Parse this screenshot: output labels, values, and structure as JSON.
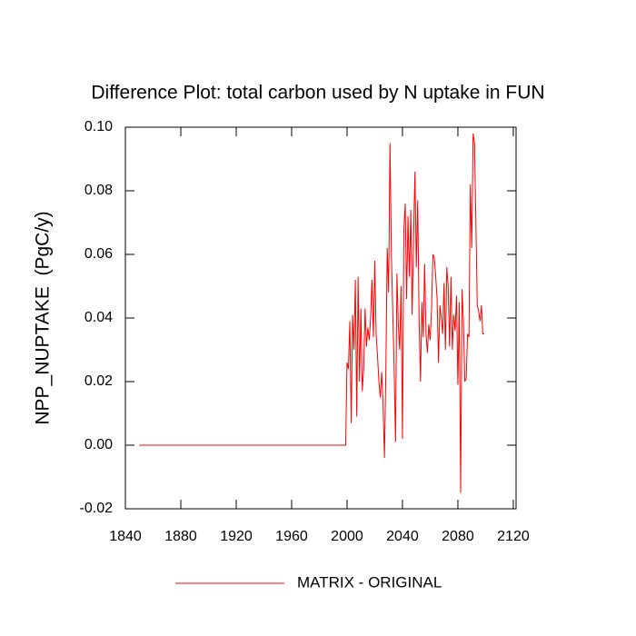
{
  "chart_data": {
    "type": "line",
    "title": "Difference Plot: total carbon used by N uptake in FUN",
    "ylabel": "NPP_NUPTAKE  (PgC/y)",
    "x": [
      1850,
      1999,
      2000,
      2001,
      2002,
      2003,
      2004,
      2005,
      2006,
      2007,
      2008,
      2009,
      2010,
      2011,
      2012,
      2013,
      2014,
      2015,
      2016,
      2017,
      2018,
      2019,
      2020,
      2021,
      2022,
      2023,
      2024,
      2025,
      2026,
      2027,
      2028,
      2029,
      2030,
      2031,
      2032,
      2033,
      2034,
      2035,
      2036,
      2037,
      2038,
      2039,
      2040,
      2041,
      2042,
      2043,
      2044,
      2045,
      2046,
      2047,
      2048,
      2049,
      2050,
      2051,
      2052,
      2053,
      2054,
      2055,
      2056,
      2057,
      2058,
      2059,
      2060,
      2061,
      2062,
      2063,
      2064,
      2065,
      2066,
      2067,
      2068,
      2069,
      2070,
      2071,
      2072,
      2073,
      2074,
      2075,
      2076,
      2077,
      2078,
      2079,
      2080,
      2081,
      2082,
      2083,
      2084,
      2085,
      2086,
      2087,
      2088,
      2089,
      2090,
      2091,
      2092,
      2093,
      2094,
      2095,
      2096,
      2097,
      2098,
      2099
    ],
    "series": [
      {
        "name": "MATRIX - ORIGINAL",
        "color": "#ff0000",
        "values": [
          0,
          0,
          0.026,
          0.024,
          0.039,
          0.007,
          0.041,
          0.03,
          0.052,
          0.009,
          0.053,
          0.02,
          0.043,
          0.017,
          0.024,
          0.043,
          0.031,
          0.037,
          0.033,
          0.04,
          0.052,
          0.034,
          0.058,
          0.035,
          0.028,
          0.02,
          0.015,
          0.023,
          0.013,
          -0.004,
          0.023,
          0.062,
          0.048,
          0.095,
          0.06,
          0.042,
          0.024,
          0.001,
          0.054,
          0.038,
          0.03,
          0.05,
          0.002,
          0.068,
          0.076,
          0.046,
          0.072,
          0.053,
          0.074,
          0.041,
          0.065,
          0.086,
          0.056,
          0.077,
          0.04,
          0.02,
          0.045,
          0.034,
          0.057,
          0.035,
          0.029,
          0.038,
          0.033,
          0.043,
          0.06,
          0.059,
          0.053,
          0.046,
          0.026,
          0.044,
          0.04,
          0.035,
          0.051,
          0.03,
          0.056,
          0.05,
          0.031,
          0.053,
          0.03,
          0.041,
          0.036,
          0.047,
          0.019,
          0.045,
          -0.015,
          0.049,
          0.039,
          0.02,
          0.021,
          0.035,
          0.034,
          0.082,
          0.062,
          0.098,
          0.095,
          0.07,
          0.044,
          0.042,
          0.039,
          0.044,
          0.035,
          0.035
        ]
      }
    ],
    "xlim": [
      1840,
      2122
    ],
    "xticks": [
      1840,
      1880,
      1920,
      1960,
      2000,
      2040,
      2080,
      2120
    ],
    "ylim": [
      -0.02,
      0.1
    ],
    "yticks": [
      {
        "value": 0.1,
        "label": "0.10"
      },
      0.08,
      0.06,
      0.04,
      0.02,
      {
        "value": 0,
        "label": "0.00"
      },
      -0.02
    ],
    "grid": false,
    "legend": "bottom"
  }
}
